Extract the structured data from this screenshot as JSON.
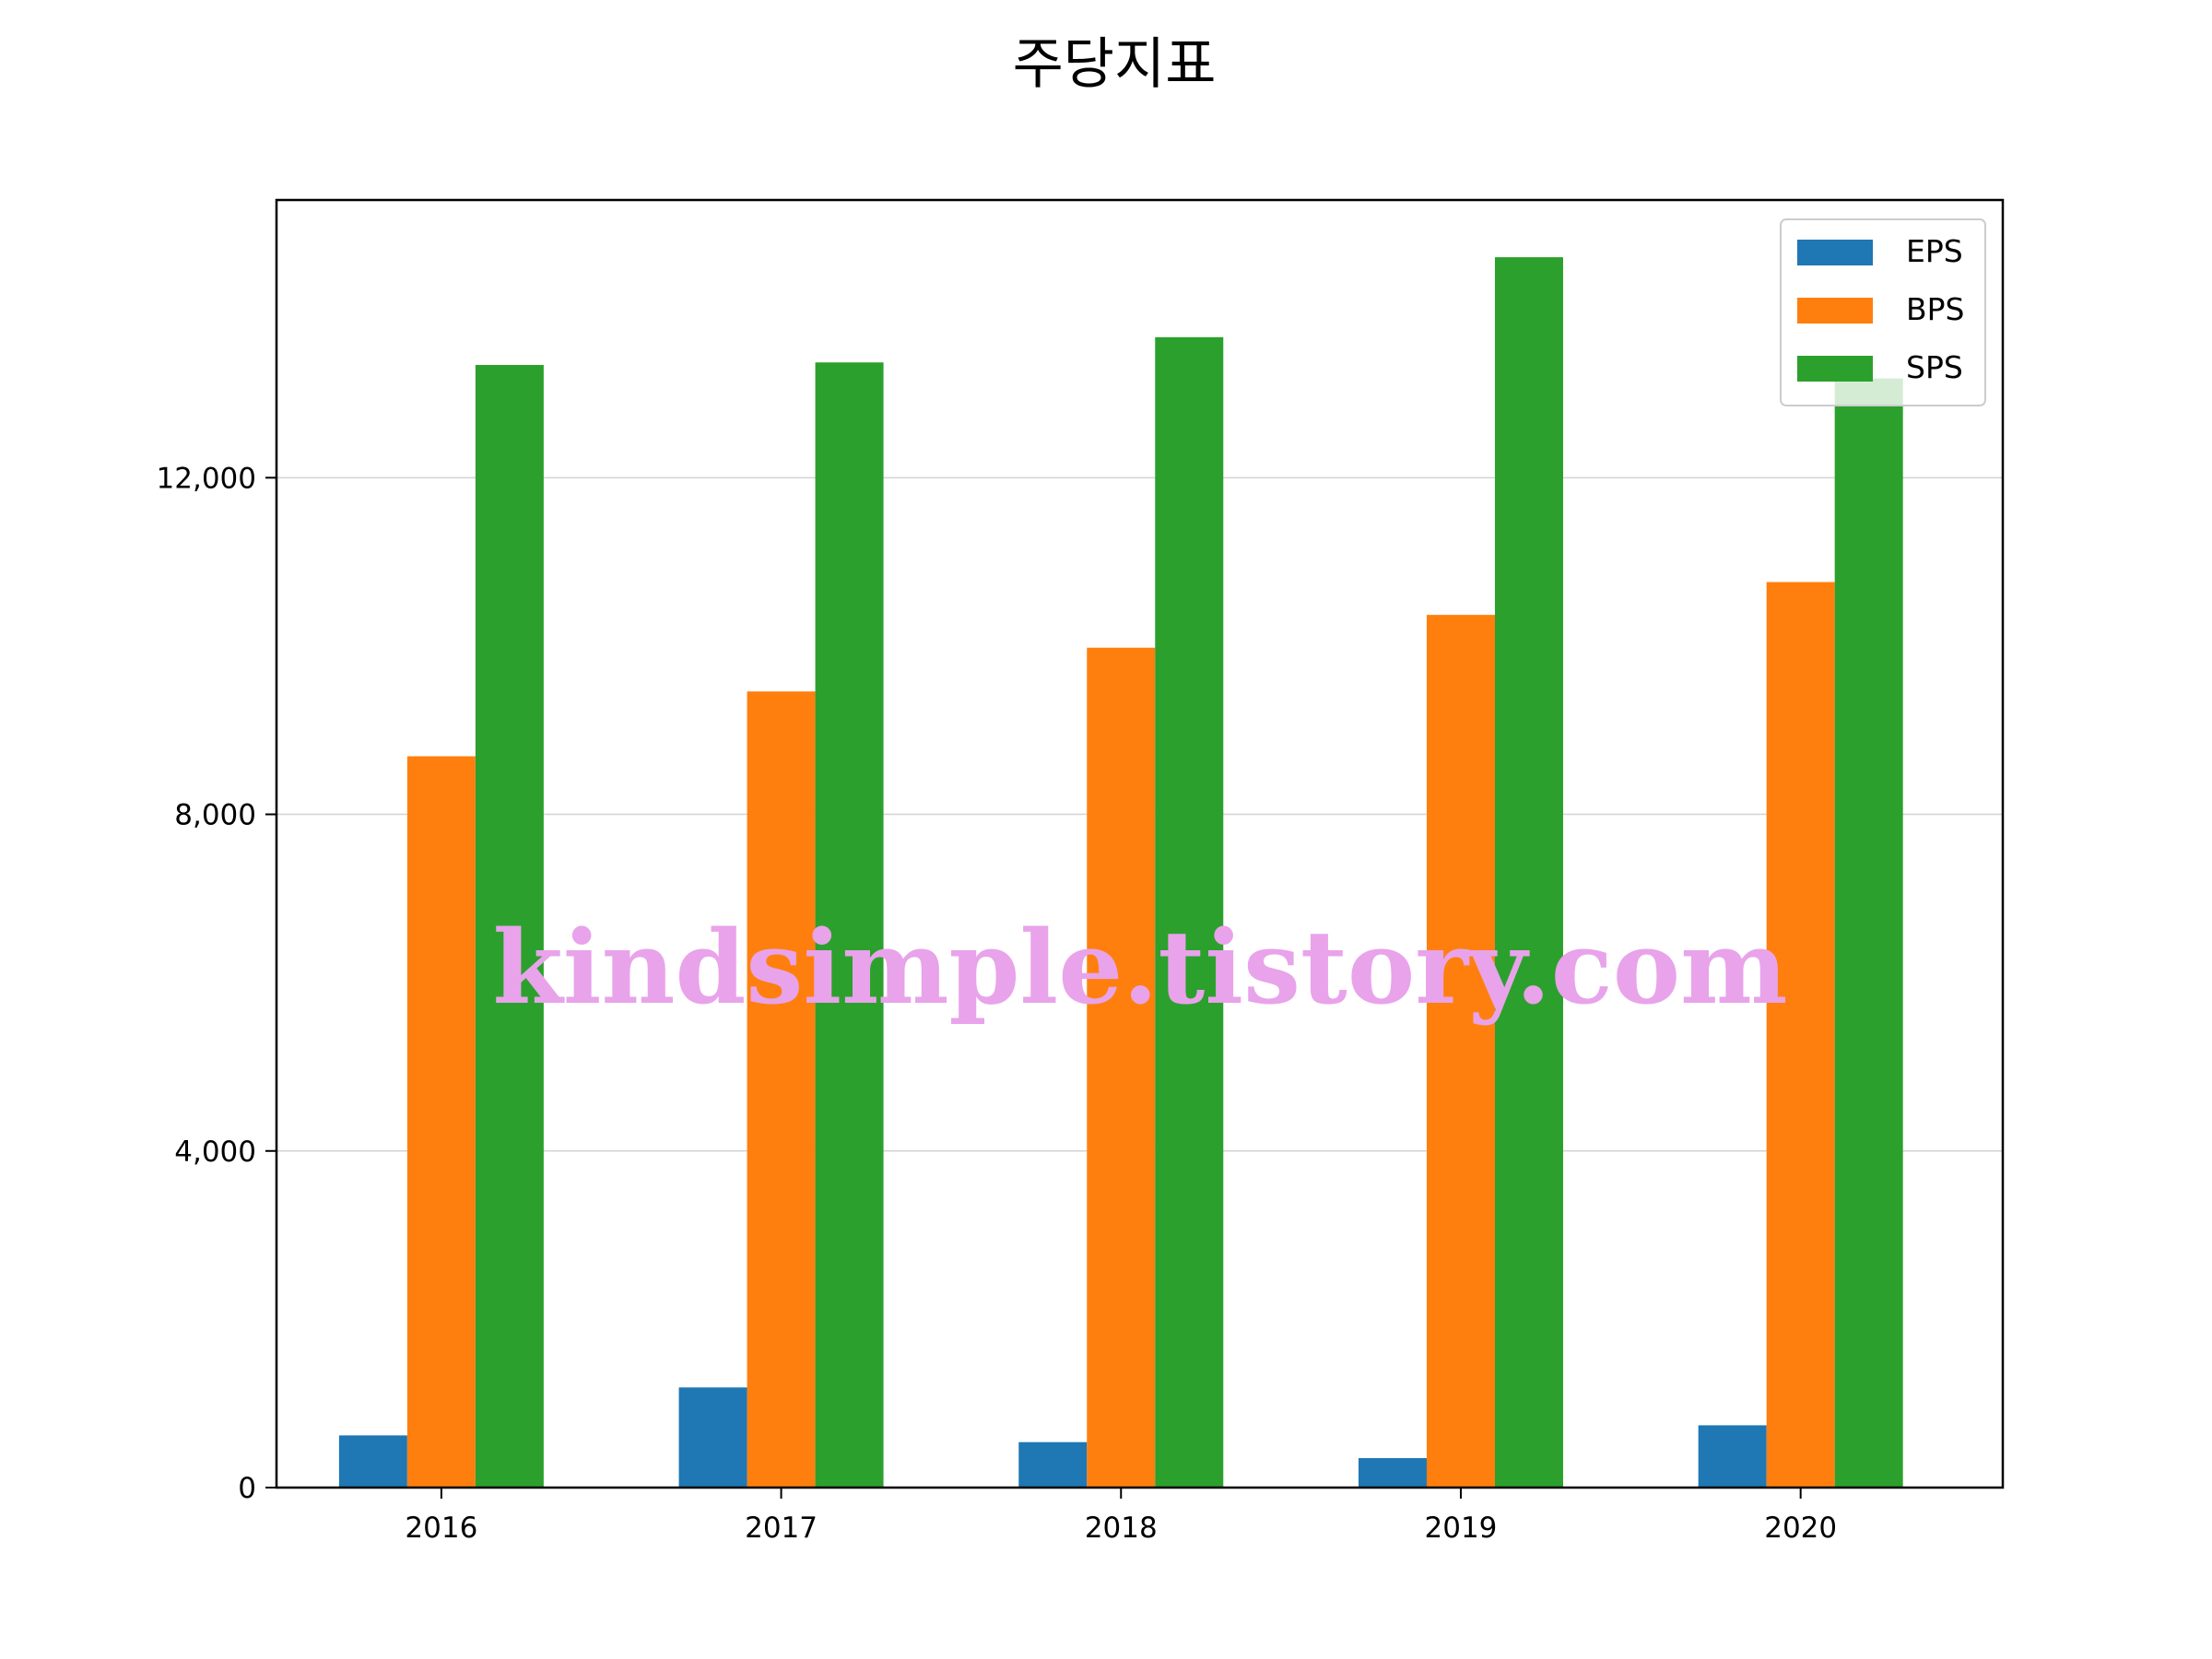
{
  "chart_data": {
    "type": "bar",
    "title": "주당지표",
    "categories": [
      "2016",
      "2017",
      "2018",
      "2019",
      "2020"
    ],
    "series": [
      {
        "name": "EPS",
        "color": "#1f77b4",
        "values": [
          620,
          1190,
          540,
          350,
          740
        ]
      },
      {
        "name": "BPS",
        "color": "#ff7f0e",
        "values": [
          8690,
          9460,
          9980,
          10370,
          10760
        ]
      },
      {
        "name": "SPS",
        "color": "#2ca02c",
        "values": [
          13340,
          13370,
          13670,
          14620,
          13180
        ]
      }
    ],
    "ylim": [
      0,
      15300
    ],
    "yticks": [
      0,
      4000,
      8000,
      12000
    ],
    "ytick_labels": [
      "0",
      "4,000",
      "8,000",
      "12,000"
    ],
    "grid": "y",
    "legend_position": "top-right",
    "watermark": "kindsimple.tistory.com"
  }
}
